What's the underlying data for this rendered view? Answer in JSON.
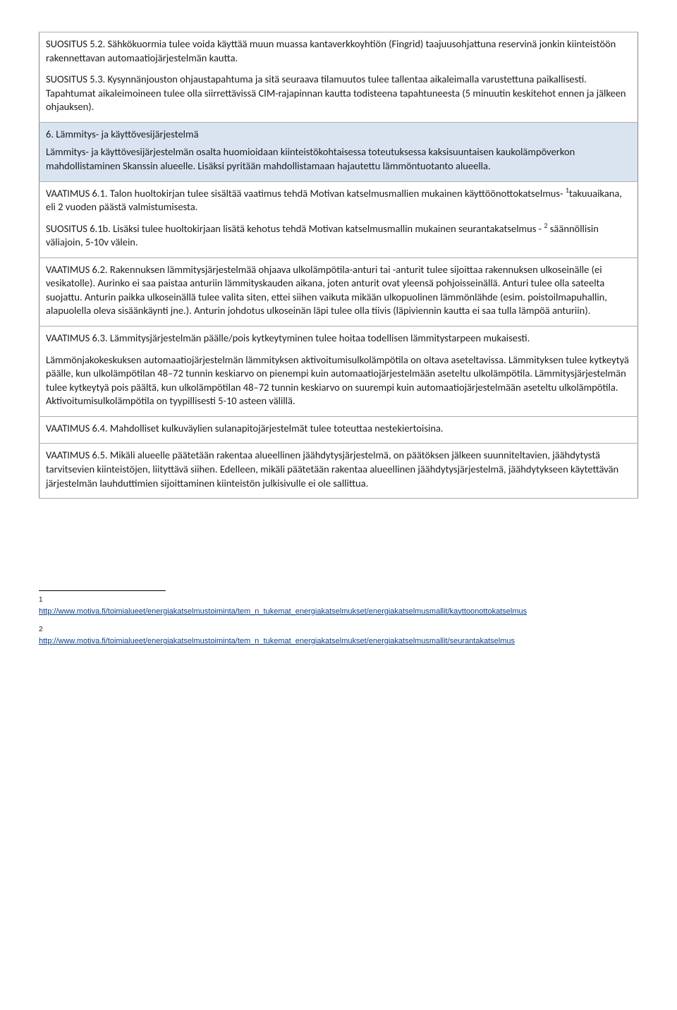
{
  "rows": [
    {
      "highlight": false,
      "paras": [
        "SUOSITUS 5.2. Sähkökuormia tulee voida käyttää muun muassa kantaverkkoyhtiön (Fingrid) taajuusohjattuna reservinä jonkin kiinteistöön rakennettavan automaatiojärjestelmän kautta.",
        "SUOSITUS 5.3. Kysynnänjouston ohjaustapahtuma ja sitä seuraava tilamuutos tulee tallentaa aikaleimalla varustettuna paikallisesti. Tapahtumat aikaleimoineen tulee olla siirrettävissä CIM-rajapinnan kautta todisteena tapahtuneesta (5 minuutin keskitehot ennen ja jälkeen ohjauksen)."
      ]
    },
    {
      "highlight": true,
      "title": "6. Lämmitys- ja käyttövesijärjestelmä",
      "paras": [
        "Lämmitys- ja käyttövesijärjestelmän osalta huomioidaan kiinteistökohtaisessa toteutuksessa kaksisuuntaisen kaukolämpöverkon mahdollistaminen Skanssin alueelle. Lisäksi pyritään mahdollistamaan hajautettu lämmöntuotanto alueella."
      ]
    },
    {
      "highlight": false,
      "paras_html": [
        "VAATIMUS 6.1. Talon huoltokirjan tulee sisältää vaatimus tehdä Motivan katselmusmallien mukainen käyttöönottokatselmus- <sup>1</sup>takuuaikana, eli 2 vuoden päästä valmistumisesta.",
        "SUOSITUS 6.1b. Lisäksi tulee huoltokirjaan lisätä kehotus tehdä Motivan katselmusmallin mukainen seurantakatselmus - <sup>2</sup> säännöllisin väliajoin, 5-10v välein."
      ]
    },
    {
      "highlight": false,
      "paras": [
        "VAATIMUS 6.2. Rakennuksen lämmitysjärjestelmää ohjaava ulkolämpötila-anturi tai -anturit tulee sijoittaa rakennuksen ulkoseinälle (ei vesikatolle). Aurinko ei saa paistaa anturiin lämmityskauden aikana, joten anturit ovat yleensä pohjoisseinällä. Anturi tulee olla sateelta suojattu.  Anturin paikka ulkoseinällä tulee valita siten, ettei siihen vaikuta mikään ulkopuolinen lämmönlähde (esim. poistoilmapuhallin, alapuolella oleva sisäänkäynti jne.). Anturin johdotus ulkoseinän läpi tulee olla tiivis (läpiviennin kautta ei saa tulla lämpöä anturiin)."
      ]
    },
    {
      "highlight": false,
      "paras": [
        "VAATIMUS 6.3. Lämmitysjärjestelmän päälle/pois kytkeytyminen tulee hoitaa todellisen lämmitystarpeen mukaisesti.",
        "Lämmönjakokeskuksen automaatiojärjestelmän lämmityksen aktivoitumisulkolämpötila on oltava aseteltavissa. Lämmityksen tulee kytkeytyä päälle, kun ulkolämpötilan 48–72 tunnin keskiarvo on pienempi kuin automaatiojärjestelmään aseteltu ulkolämpötila. Lämmitysjärjestelmän tulee kytkeytyä pois päältä, kun ulkolämpötilan 48–72 tunnin keskiarvo on suurempi kuin automaatiojärjestelmään aseteltu ulkolämpötila. Aktivoitumisulkolämpötila on tyypillisesti 5-10 asteen välillä."
      ]
    },
    {
      "highlight": false,
      "paras": [
        "VAATIMUS 6.4. Mahdolliset kulkuväylien sulanapitojärjestelmät tulee toteuttaa nestekiertoisina."
      ]
    },
    {
      "highlight": false,
      "paras": [
        "VAATIMUS 6.5. Mikäli alueelle päätetään rakentaa alueellinen jäähdytysjärjestelmä, on päätöksen jälkeen suunniteltavien, jäähdytystä tarvitsevien kiinteistöjen, liityttävä siihen. Edelleen, mikäli päätetään rakentaa alueellinen jäähdytysjärjestelmä, jäähdytykseen käytettävän järjestelmän lauhduttimien sijoittaminen kiinteistön julkisivulle ei ole sallittua."
      ]
    }
  ],
  "footnotes": [
    {
      "num": "1",
      "url": "http://www.motiva.fi/toimialueet/energiakatselmustoiminta/tem_n_tukemat_energiakatselmukset/energiakatselmusmallit/kayttoonottokatselmus"
    },
    {
      "num": "2",
      "url": "http://www.motiva.fi/toimialueet/energiakatselmustoiminta/tem_n_tukemat_energiakatselmukset/energiakatselmusmallit/seurantakatselmus"
    }
  ],
  "colors": {
    "highlight_bg": "#dae4f1",
    "link": "#0b3f8c",
    "border": "#888"
  }
}
